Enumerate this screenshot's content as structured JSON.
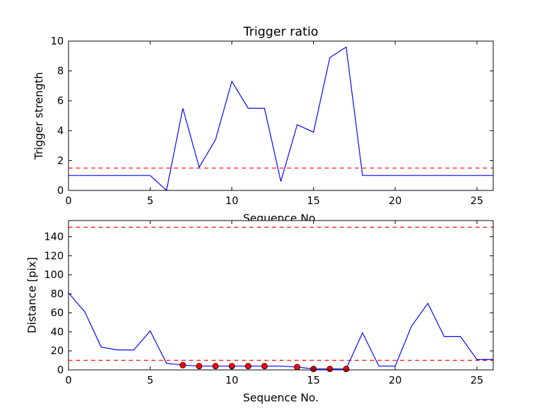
{
  "chart_data": [
    {
      "type": "line",
      "title": "Trigger ratio",
      "xlabel": "Sequence No.",
      "ylabel": "Trigger strength",
      "xlim": [
        0,
        26
      ],
      "ylim": [
        0,
        10
      ],
      "xticks": [
        0,
        5,
        10,
        15,
        20,
        25
      ],
      "yticks": [
        0,
        2,
        4,
        6,
        8,
        10
      ],
      "grid": false,
      "series": [
        {
          "color": "#0000ff",
          "style": "solid",
          "x": [
            0,
            1,
            2,
            3,
            4,
            5,
            6,
            7,
            8,
            9,
            10,
            11,
            12,
            13,
            14,
            15,
            16,
            17,
            18,
            19,
            20,
            21,
            22,
            23,
            24,
            25,
            26
          ],
          "values": [
            1.0,
            1.0,
            1.0,
            1.0,
            1.0,
            1.0,
            0.0,
            5.5,
            1.55,
            3.4,
            7.3,
            5.5,
            5.5,
            0.6,
            4.4,
            3.9,
            8.9,
            9.6,
            1.0,
            1.0,
            1.0,
            1.0,
            1.0,
            1.0,
            1.0,
            1.0,
            1.0
          ]
        }
      ],
      "reference_lines": [
        {
          "y": 1.5,
          "color": "#ff0000",
          "style": "dashed"
        }
      ]
    },
    {
      "type": "line",
      "title": "",
      "xlabel": "Sequence No.",
      "ylabel": "Distance [pix]",
      "xlim": [
        0,
        26
      ],
      "ylim": [
        0,
        157
      ],
      "xticks": [
        0,
        5,
        10,
        15,
        20,
        25
      ],
      "yticks": [
        0,
        20,
        40,
        60,
        80,
        100,
        120,
        140
      ],
      "grid": false,
      "series": [
        {
          "color": "#0000ff",
          "style": "solid",
          "x": [
            0,
            1,
            2,
            3,
            4,
            5,
            6,
            7,
            8,
            9,
            10,
            11,
            12,
            13,
            14,
            15,
            16,
            17,
            18,
            19,
            20,
            21,
            22,
            23,
            24,
            25,
            26
          ],
          "values": [
            81,
            61,
            24,
            21,
            21,
            41,
            7,
            5,
            4,
            4,
            4,
            4,
            4,
            4,
            3,
            1,
            1,
            1,
            39,
            4,
            4,
            46,
            70,
            35,
            35,
            11,
            11
          ]
        }
      ],
      "markers": {
        "color": "#ff0000",
        "edge_color": "#000000",
        "x": [
          7,
          8,
          9,
          10,
          11,
          12,
          14,
          15,
          16,
          17
        ],
        "values": [
          5,
          4,
          4,
          4,
          4,
          4,
          3,
          1,
          1,
          1
        ]
      },
      "reference_lines": [
        {
          "y": 150,
          "color": "#ff0000",
          "style": "dashed"
        },
        {
          "y": 10,
          "color": "#ff0000",
          "style": "dashed"
        }
      ]
    }
  ]
}
